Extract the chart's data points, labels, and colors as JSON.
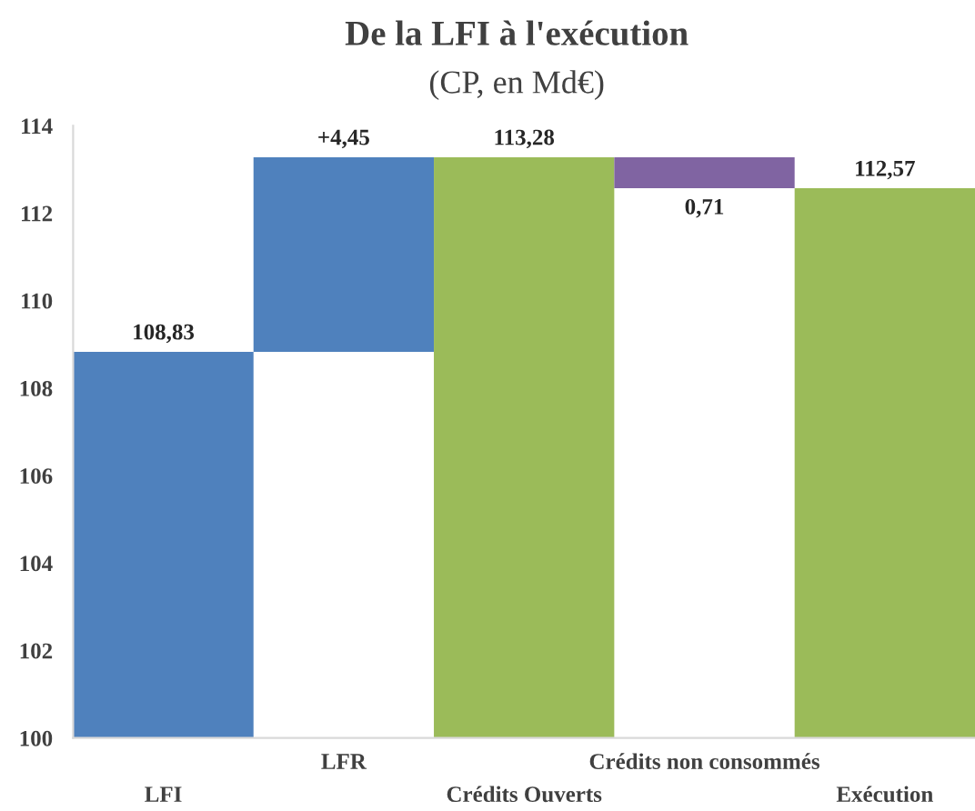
{
  "chart_data": {
    "type": "bar",
    "title": "De la LFI à l'exécution",
    "subtitle": "(CP, en Md€)",
    "categories": [
      "LFI",
      "LFR",
      "Crédits Ouverts",
      "Crédits non consommés",
      "Exécution"
    ],
    "values": [
      8.83,
      4.45,
      13.28,
      -0.71,
      12.57
    ],
    "base": [
      100,
      108.83,
      100,
      113.28,
      100
    ],
    "colors": [
      "#4f81bd",
      "#4f81bd",
      "#9bbb59",
      "#8064a2",
      "#9bbb59"
    ],
    "value_labels": [
      "108,83",
      "+4,45",
      "113,28",
      "0,71",
      "112,57"
    ],
    "ylim": [
      100,
      114
    ],
    "yticks": [
      100,
      102,
      104,
      106,
      108,
      110,
      112,
      114
    ],
    "grid": false,
    "legend": false
  }
}
